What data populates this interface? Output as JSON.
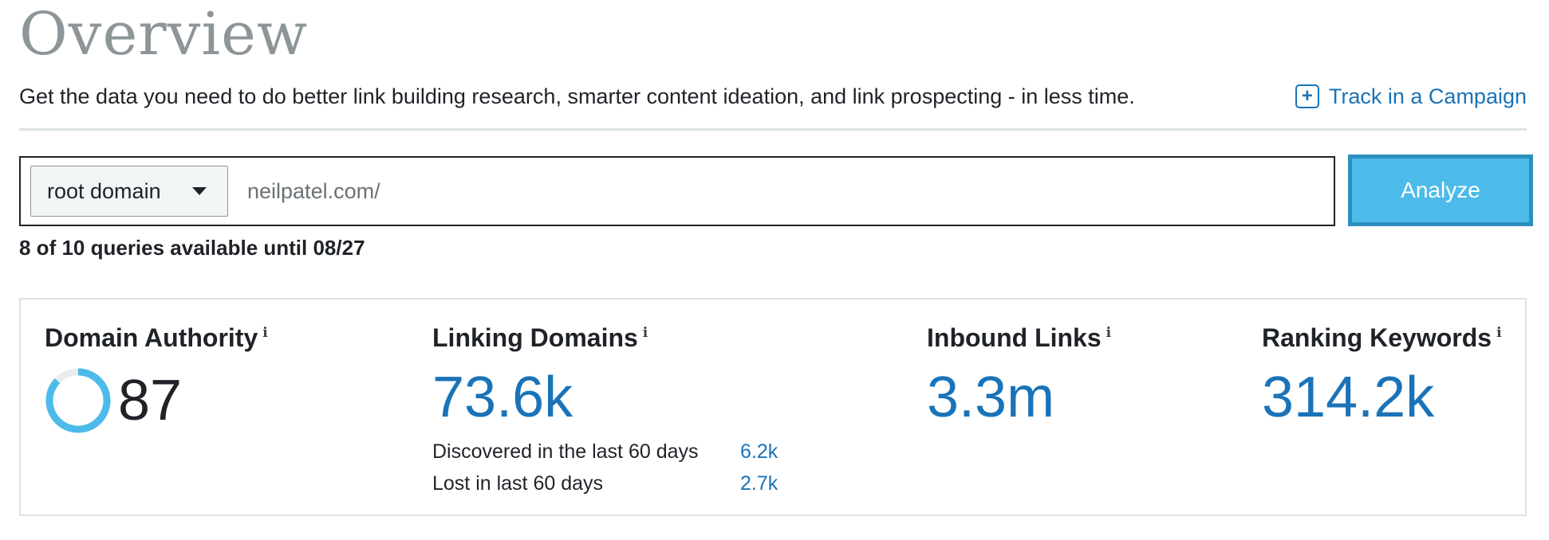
{
  "header": {
    "title": "Overview",
    "subtitle": "Get the data you need to do better link building research, smarter content ideation, and link prospecting - in less time.",
    "track_label": "Track in a Campaign",
    "track_icon": "plus-square-icon"
  },
  "search": {
    "scope_value": "root domain",
    "url_value": "neilpatel.com/",
    "analyze_label": "Analyze",
    "queries_note": "8 of 10 queries available until 08/27"
  },
  "metrics": {
    "domain_authority": {
      "label": "Domain Authority",
      "info": "i",
      "value": "87",
      "ring_fraction": 0.87
    },
    "linking_domains": {
      "label": "Linking Domains",
      "info": "i",
      "value": "73.6k",
      "discovered_label": "Discovered in the last 60 days",
      "discovered_value": "6.2k",
      "lost_label": "Lost in last 60 days",
      "lost_value": "2.7k"
    },
    "inbound_links": {
      "label": "Inbound Links",
      "info": "i",
      "value": "3.3m"
    },
    "ranking_keywords": {
      "label": "Ranking Keywords",
      "info": "i",
      "value": "314.2k"
    }
  },
  "colors": {
    "accent_blue": "#1a73b8",
    "button_blue": "#4cbbe9",
    "ring_blue": "#4cbbe9",
    "ring_track": "#e8ecee"
  }
}
